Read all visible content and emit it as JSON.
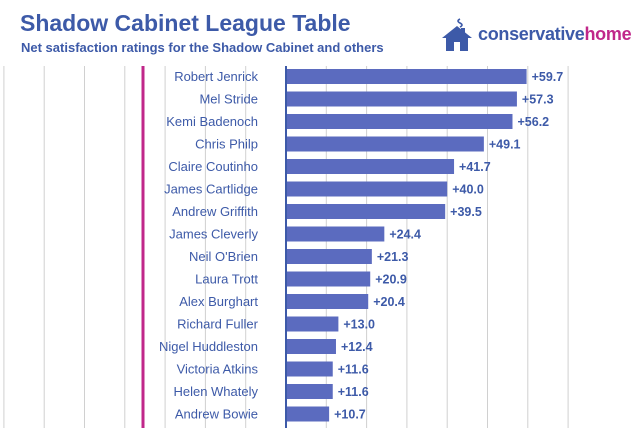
{
  "header": {
    "title": "Shadow Cabinet League Table",
    "subtitle": "Net satisfaction ratings for the Shadow Cabinet and others"
  },
  "logo": {
    "word_1": "conservative",
    "word_2": "home",
    "icon": "house-icon"
  },
  "colors": {
    "title": "#3d5aa8",
    "bar": "#5b6bbf",
    "accent_line": "#c0278a",
    "grid": "#d0d0d0"
  },
  "chart_data": {
    "type": "bar",
    "orientation": "horizontal",
    "categories": [
      "Robert Jenrick",
      "Mel Stride",
      "Kemi Badenoch",
      "Chris Philp",
      "Claire Coutinho",
      "James Cartlidge",
      "Andrew Griffith",
      "James Cleverly",
      "Neil O'Brien",
      "Laura Trott",
      "Alex Burghart",
      "Richard Fuller",
      "Nigel Huddleston",
      "Victoria Atkins",
      "Helen Whately",
      "Andrew Bowie"
    ],
    "values": [
      59.7,
      57.3,
      56.2,
      49.1,
      41.7,
      40.0,
      39.5,
      24.4,
      21.3,
      20.9,
      20.4,
      13.0,
      12.4,
      11.6,
      11.6,
      10.7
    ],
    "value_labels": [
      "+59.7",
      "+57.3",
      "+56.2",
      "+49.1",
      "+41.7",
      "+40.0",
      "+39.5",
      "+24.4",
      "+21.3",
      "+20.9",
      "+20.4",
      "+13.0",
      "+12.4",
      "+11.6",
      "+11.6",
      "+10.7"
    ],
    "xlim": [
      -70,
      75
    ],
    "grid": true
  }
}
